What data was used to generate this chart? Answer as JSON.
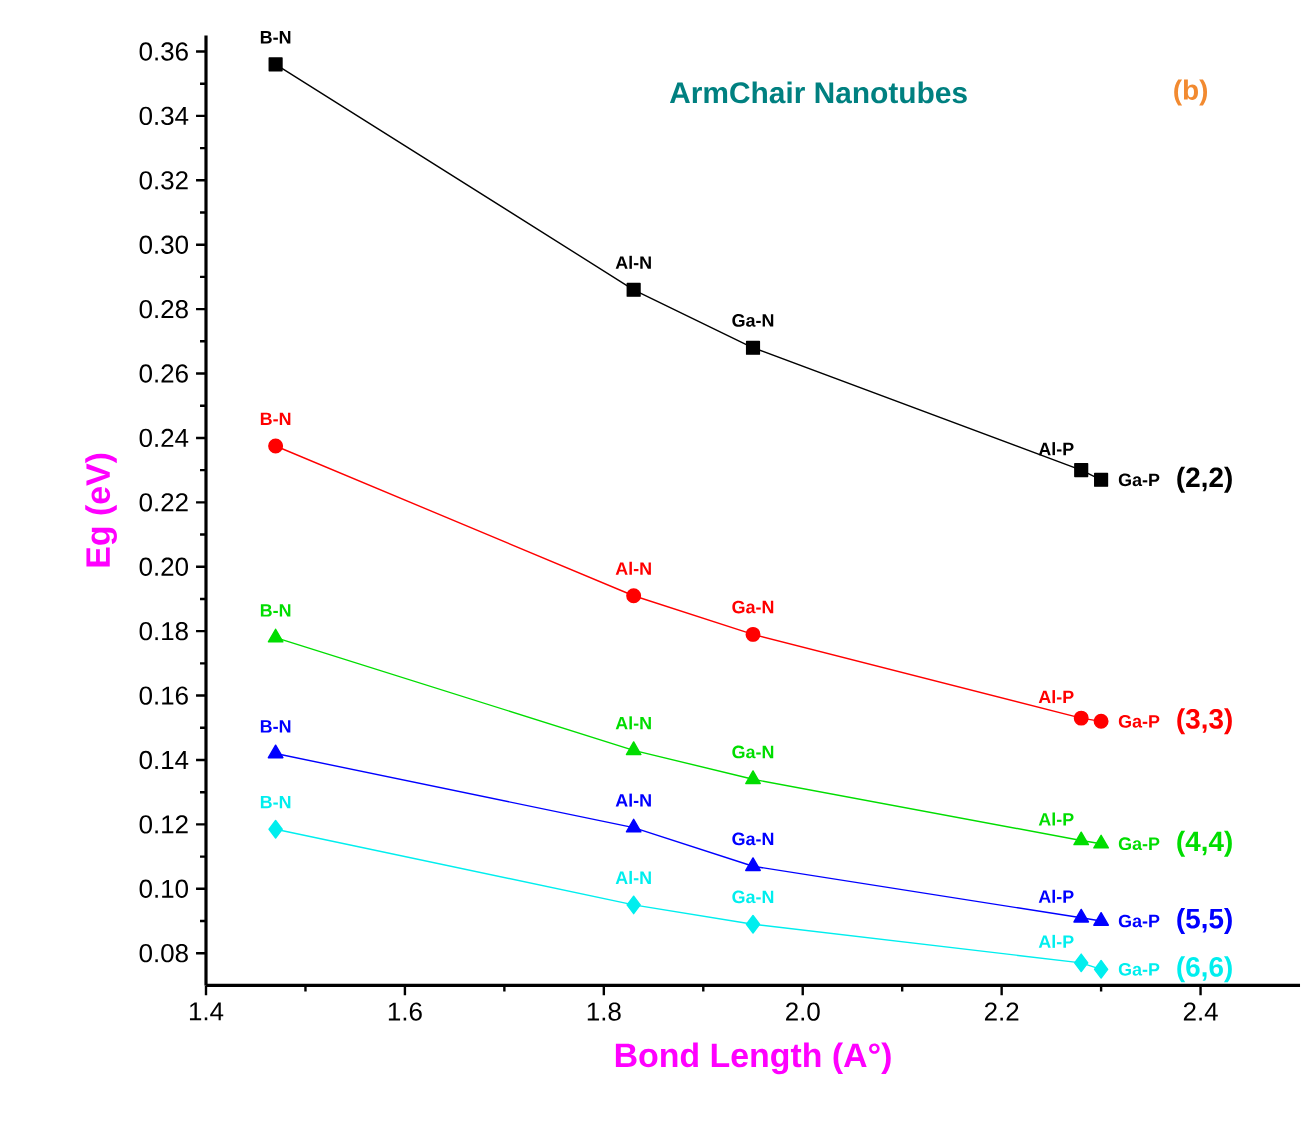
{
  "chart_data": {
    "type": "line",
    "title": "ArmChair Nanotubes",
    "xlabel": "Bond Length (A°)",
    "ylabel": "Eg (eV)",
    "x": [
      1.47,
      1.83,
      1.95,
      2.28,
      2.3
    ],
    "series": [
      {
        "name": "(2,2)",
        "color": "#000000",
        "marker": "square",
        "values": [
          0.356,
          0.286,
          0.268,
          0.23,
          0.227
        ]
      },
      {
        "name": "(3,3)",
        "color": "#ff0000",
        "marker": "circle",
        "values": [
          0.2375,
          0.191,
          0.179,
          0.153,
          0.152
        ]
      },
      {
        "name": "(4,4)",
        "color": "#00dd00",
        "marker": "triangle",
        "values": [
          0.178,
          0.143,
          0.134,
          0.115,
          0.114
        ]
      },
      {
        "name": "(5,5)",
        "color": "#0000ff",
        "marker": "triangle",
        "values": [
          0.142,
          0.119,
          0.107,
          0.091,
          0.09
        ]
      },
      {
        "name": "(6,6)",
        "color": "#00eeee",
        "marker": "diamond",
        "values": [
          0.1185,
          0.095,
          0.089,
          0.077,
          0.075
        ]
      }
    ],
    "xlim": [
      1.4,
      2.5
    ],
    "ylim": [
      0.07,
      0.365
    ],
    "xticks": [
      {
        "value": 1.4,
        "label": "1.4"
      },
      {
        "value": 1.6,
        "label": "1.6"
      },
      {
        "value": 1.8,
        "label": "1.8"
      },
      {
        "value": 2.0,
        "label": "2.0"
      },
      {
        "value": 2.2,
        "label": "2.2"
      },
      {
        "value": 2.4,
        "label": "2.4"
      }
    ],
    "yticks": [
      {
        "value": 0.08,
        "label": "0.08"
      },
      {
        "value": 0.1,
        "label": "0.10"
      },
      {
        "value": 0.12,
        "label": "0.12"
      },
      {
        "value": 0.14,
        "label": "0.14"
      },
      {
        "value": 0.16,
        "label": "0.16"
      },
      {
        "value": 0.18,
        "label": "0.18"
      },
      {
        "value": 0.2,
        "label": "0.20"
      },
      {
        "value": 0.22,
        "label": "0.22"
      },
      {
        "value": 0.24,
        "label": "0.24"
      },
      {
        "value": 0.26,
        "label": "0.26"
      },
      {
        "value": 0.28,
        "label": "0.28"
      },
      {
        "value": 0.3,
        "label": "0.30"
      },
      {
        "value": 0.32,
        "label": "0.32"
      },
      {
        "value": 0.34,
        "label": "0.34"
      },
      {
        "value": 0.36,
        "label": "0.36"
      }
    ],
    "grid": false,
    "legend": false,
    "line_style": "solid",
    "annotations": [
      "(b)",
      {
        "text": "B-N",
        "x": 1.47,
        "y": 0.356
      },
      {
        "text": "Al-N",
        "x": 1.83,
        "y": 0.286
      },
      {
        "text": "Ga-N",
        "x": 1.95,
        "y": 0.268
      },
      {
        "text": "Al-P",
        "x": 2.28,
        "y": 0.23
      },
      {
        "text": "Ga-P",
        "x": 2.3,
        "y": 0.227
      },
      {
        "text": "B-N",
        "x": 1.47,
        "y": 0.2375
      },
      {
        "text": "Al-N",
        "x": 1.83,
        "y": 0.191
      },
      {
        "text": "Ga-N",
        "x": 1.95,
        "y": 0.179
      },
      {
        "text": "Al-P",
        "x": 2.28,
        "y": 0.153
      },
      {
        "text": "Ga-P",
        "x": 2.3,
        "y": 0.152
      },
      {
        "text": "B-N",
        "x": 1.47,
        "y": 0.178
      },
      {
        "text": "Al-N",
        "x": 1.83,
        "y": 0.143
      },
      {
        "text": "Ga-N",
        "x": 1.95,
        "y": 0.134
      },
      {
        "text": "Al-P",
        "x": 2.28,
        "y": 0.115
      },
      {
        "text": "Ga-P",
        "x": 2.3,
        "y": 0.114
      },
      {
        "text": "B-N",
        "x": 1.47,
        "y": 0.142
      },
      {
        "text": "Al-N",
        "x": 1.83,
        "y": 0.119
      },
      {
        "text": "Ga-N",
        "x": 1.95,
        "y": 0.107
      },
      {
        "text": "Al-P",
        "x": 2.28,
        "y": 0.091
      },
      {
        "text": "Ga-P",
        "x": 2.3,
        "y": 0.09
      },
      {
        "text": "B-N",
        "x": 1.47,
        "y": 0.1185
      },
      {
        "text": "Al-N",
        "x": 1.83,
        "y": 0.095
      },
      {
        "text": "Ga-N",
        "x": 1.95,
        "y": 0.089
      },
      {
        "text": "Al-P",
        "x": 2.28,
        "y": 0.077
      },
      {
        "text": "Ga-P",
        "x": 2.3,
        "y": 0.075
      }
    ]
  }
}
